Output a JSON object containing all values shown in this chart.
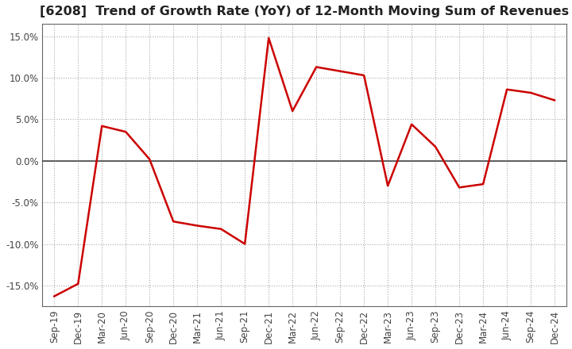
{
  "title": "[6208]  Trend of Growth Rate (YoY) of 12-Month Moving Sum of Revenues",
  "title_fontsize": 11.5,
  "background_color": "#ffffff",
  "line_color": "#cc0000",
  "grid_color": "#aaaaaa",
  "xlabel": "",
  "ylabel": "",
  "ylim": [
    -0.175,
    0.165
  ],
  "yticks": [
    -0.15,
    -0.1,
    -0.05,
    0.0,
    0.05,
    0.1,
    0.15
  ],
  "x_labels": [
    "Sep-19",
    "Dec-19",
    "Mar-20",
    "Jun-20",
    "Sep-20",
    "Dec-20",
    "Mar-21",
    "Jun-21",
    "Sep-21",
    "Dec-21",
    "Mar-22",
    "Jun-22",
    "Sep-22",
    "Dec-22",
    "Mar-23",
    "Jun-23",
    "Sep-23",
    "Dec-23",
    "Mar-24",
    "Jun-24",
    "Sep-24",
    "Dec-24"
  ],
  "values": [
    -0.163,
    -0.148,
    0.042,
    0.035,
    0.002,
    -0.073,
    -0.078,
    -0.082,
    -0.1,
    0.148,
    0.06,
    0.113,
    0.108,
    0.103,
    -0.03,
    0.044,
    0.017,
    -0.032,
    -0.028,
    0.086,
    0.082,
    0.073
  ],
  "box_color": "#666666",
  "zero_line_color": "#444444",
  "tick_label_color": "#444444",
  "tick_label_fontsize": 8.5
}
